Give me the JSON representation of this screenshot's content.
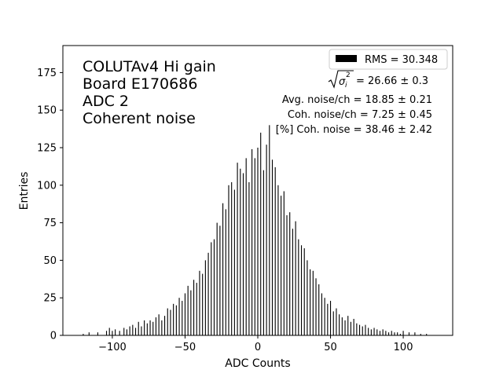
{
  "chart_data": {
    "type": "bar",
    "title": "",
    "xlabel": "ADC Counts",
    "ylabel": "Entries",
    "xlim": [
      -134,
      134
    ],
    "ylim": [
      0,
      193
    ],
    "x_ticks": [
      -100,
      -50,
      0,
      50,
      100
    ],
    "y_ticks": [
      0,
      25,
      50,
      75,
      100,
      125,
      150,
      175
    ],
    "grid": false,
    "legend": {
      "position": "top-right",
      "entries": [
        {
          "label": "RMS = 30.348",
          "color": "#000000"
        }
      ]
    },
    "annotations": {
      "top_left": [
        "COLUTAv4 Hi gain",
        "Board E170686",
        "ADC 2",
        "Coherent noise"
      ],
      "stats": {
        "sigma_value": "= 26.66 ± 0.3",
        "lines": [
          "Avg. noise/ch = 18.85 ± 0.21",
          "Coh. noise/ch = 7.25 ± 0.45",
          "[%] Coh. noise = 38.46 ± 2.42"
        ]
      }
    },
    "bar_color": "#000000",
    "bin_width": 1,
    "series": [
      {
        "x": [
          -120,
          -116,
          -110,
          -104,
          -102,
          -100,
          -98,
          -95,
          -92,
          -90,
          -88,
          -86,
          -84,
          -82,
          -80,
          -78,
          -76,
          -74,
          -72,
          -70,
          -68,
          -66,
          -64,
          -62,
          -60,
          -58,
          -56,
          -54,
          -52,
          -50,
          -48,
          -46,
          -44,
          -42,
          -40,
          -38,
          -36,
          -34,
          -32,
          -30,
          -28,
          -26,
          -24,
          -22,
          -20,
          -18,
          -16,
          -14,
          -12,
          -10,
          -8,
          -6,
          -4,
          -2,
          0,
          2,
          4,
          6,
          8,
          10,
          12,
          14,
          16,
          18,
          20,
          22,
          24,
          26,
          28,
          30,
          32,
          34,
          36,
          38,
          40,
          42,
          44,
          46,
          48,
          50,
          52,
          54,
          56,
          58,
          60,
          62,
          64,
          66,
          68,
          70,
          72,
          74,
          76,
          78,
          80,
          82,
          84,
          86,
          88,
          90,
          92,
          94,
          96,
          98,
          100,
          104,
          108,
          112,
          116
        ],
        "values": [
          1,
          2,
          2,
          3,
          5,
          3,
          4,
          3,
          5,
          4,
          6,
          7,
          5,
          9,
          6,
          10,
          8,
          10,
          9,
          12,
          14,
          10,
          13,
          18,
          17,
          21,
          20,
          25,
          23,
          28,
          33,
          30,
          37,
          35,
          43,
          41,
          50,
          55,
          62,
          64,
          75,
          73,
          88,
          84,
          100,
          102,
          97,
          115,
          111,
          108,
          118,
          102,
          124,
          118,
          125,
          135,
          110,
          127,
          140,
          117,
          112,
          100,
          93,
          96,
          80,
          82,
          71,
          76,
          64,
          60,
          58,
          50,
          44,
          43,
          38,
          34,
          28,
          25,
          21,
          23,
          16,
          18,
          14,
          12,
          10,
          13,
          9,
          11,
          8,
          7,
          6,
          7,
          5,
          4,
          5,
          4,
          3,
          4,
          3,
          2,
          3,
          2,
          2,
          1,
          3,
          2,
          2,
          1,
          1
        ]
      }
    ]
  }
}
